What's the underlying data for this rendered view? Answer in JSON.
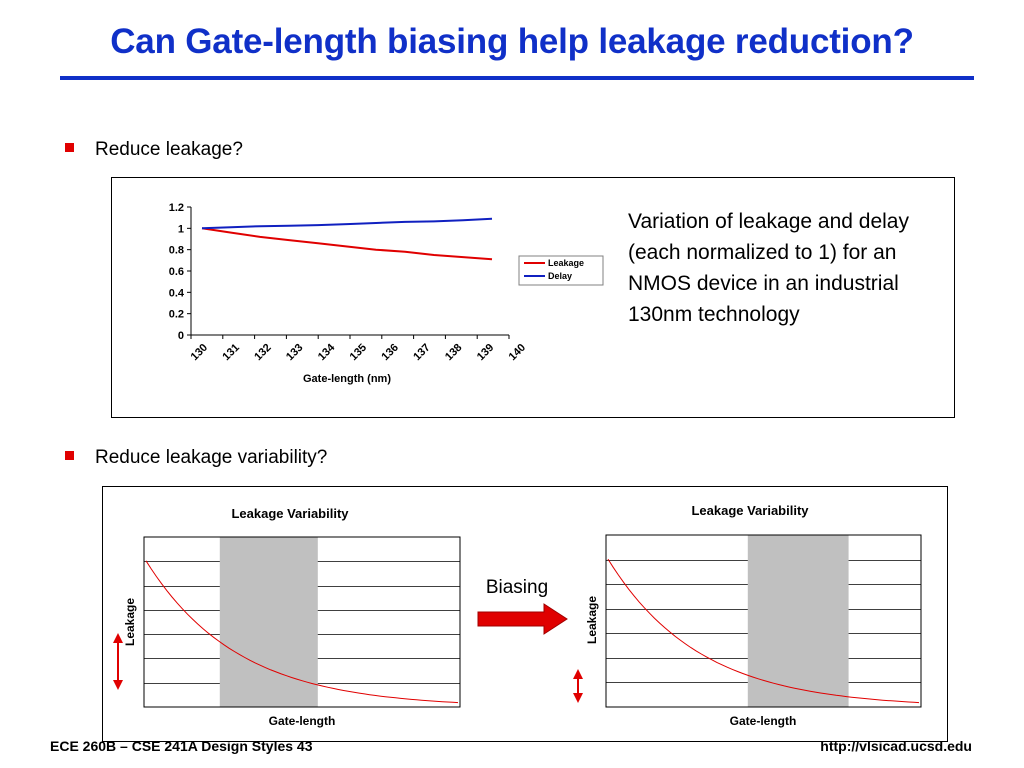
{
  "slide": {
    "title": "Can Gate-length biasing help leakage reduction?",
    "title_color": "#1030c8",
    "bullet_color": "#e00000",
    "bullets": [
      "Reduce leakage?",
      "Reduce leakage variability?"
    ],
    "note": "Variation of leakage and delay (each normalized to 1) for an NMOS device in an industrial 130nm technology",
    "biasing_label": "Biasing",
    "footer_left": "ECE 260B – CSE 241A Design Styles 43",
    "footer_right": "http://vlsicad.ucsd.edu"
  },
  "chart_data": [
    {
      "type": "line",
      "x": [
        130,
        131,
        132,
        133,
        134,
        135,
        136,
        137,
        138,
        139,
        140
      ],
      "categories": [
        "130",
        "131",
        "132",
        "133",
        "134",
        "135",
        "136",
        "137",
        "138",
        "139",
        "140"
      ],
      "series": [
        {
          "name": "Leakage",
          "color": "#e00000",
          "values": [
            1.0,
            0.96,
            0.92,
            0.89,
            0.86,
            0.83,
            0.8,
            0.78,
            0.75,
            0.73,
            0.71
          ]
        },
        {
          "name": "Delay",
          "color": "#1020c0",
          "values": [
            1.0,
            1.01,
            1.02,
            1.025,
            1.03,
            1.04,
            1.05,
            1.06,
            1.065,
            1.075,
            1.09
          ]
        }
      ],
      "title": "",
      "xlabel": "Gate-length (nm)",
      "ylabel": "",
      "ylim": [
        0,
        1.2
      ],
      "yticks": [
        "0",
        "0.2",
        "0.4",
        "0.6",
        "0.8",
        "1",
        "1.2"
      ],
      "grid": false,
      "legend": "right"
    },
    {
      "type": "line",
      "title": "Leakage Variability",
      "xlabel": "Gate-length",
      "ylabel": "Leakage",
      "grid": true,
      "curve_color": "#e00000",
      "band_color": "#c0c0c0",
      "band_x_fraction": [
        0.24,
        0.55
      ],
      "arrow": "large-variation"
    },
    {
      "type": "line",
      "title": "Leakage Variability",
      "xlabel": "Gate-length",
      "ylabel": "Leakage",
      "grid": true,
      "curve_color": "#e00000",
      "band_color": "#c0c0c0",
      "band_x_fraction": [
        0.45,
        0.77
      ],
      "arrow": "small-variation"
    }
  ]
}
